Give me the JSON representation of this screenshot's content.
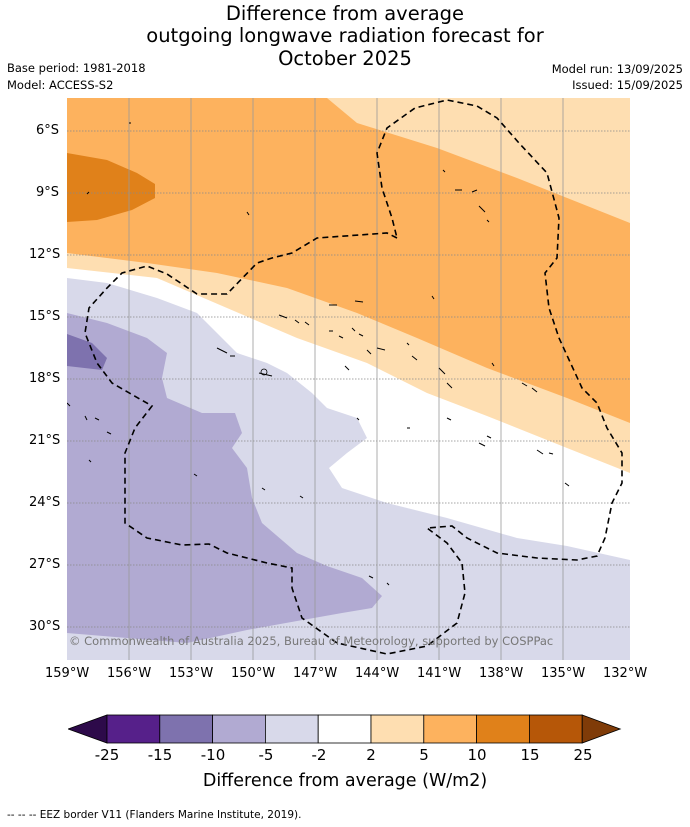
{
  "title": {
    "line1": "Difference from average",
    "line2": "outgoing longwave radiation forecast for",
    "line3": "October 2025"
  },
  "meta": {
    "base_period": "Base period: 1981-2018",
    "model": "Model: ACCESS-S2",
    "model_run": "Model run: 13/09/2025",
    "issued": "Issued: 15/09/2025"
  },
  "map": {
    "copyright": "© Commonwealth of Australia 2025, Bureau of Meteorology, supported by COSPPac",
    "lat_labels": [
      "6°S",
      "9°S",
      "12°S",
      "15°S",
      "18°S",
      "21°S",
      "24°S",
      "27°S",
      "30°S"
    ],
    "lon_labels": [
      "159°W",
      "156°W",
      "153°W",
      "150°W",
      "147°W",
      "144°W",
      "141°W",
      "138°W",
      "135°W",
      "132°W"
    ]
  },
  "colorbar": {
    "title": "Difference from average (W/m2)",
    "ticks": [
      "-25",
      "-15",
      "-10",
      "-5",
      "-2",
      "2",
      "5",
      "10",
      "15",
      "25"
    ],
    "colors": [
      "#56208a",
      "#7e72ae",
      "#b1aad2",
      "#d8d9ea",
      "#ffffff",
      "#fedeb1",
      "#fdb25e",
      "#e0811a",
      "#b65708"
    ],
    "extend_low_color": "#2d0a4a",
    "extend_high_color": "#7f3b08"
  },
  "legend": {
    "eez": "-- -- -- EEZ border V11 (Flanders Marine Institute, 2019)."
  }
}
